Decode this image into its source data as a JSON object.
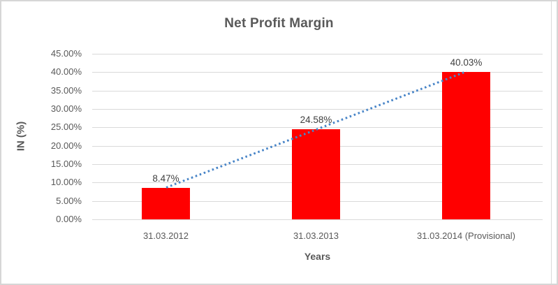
{
  "chart_data": {
    "type": "bar",
    "title": "Net Profit Margin",
    "categories": [
      "31.03.2012",
      "31.03.2013",
      "31.03.2014 (Provisional)"
    ],
    "values": [
      8.47,
      24.58,
      40.03
    ],
    "data_labels": [
      "8.47%",
      "24.58%",
      "40.03%"
    ],
    "xlabel": "Years",
    "ylabel": "IN (%)",
    "ylim": [
      0,
      45
    ],
    "yticks": [
      "45.00%",
      "40.00%",
      "35.00%",
      "30.00%",
      "25.00%",
      "20.00%",
      "15.00%",
      "10.00%",
      "5.00%",
      "0.00%"
    ],
    "grid": true,
    "legend": "none",
    "trendline": {
      "type": "linear",
      "style": "dotted"
    },
    "colors": {
      "bar": "#FF0000",
      "trendline": "#4A86C8",
      "gridline": "#D9D9D9",
      "axis_line": "#D9D9D9",
      "title_text": "#595959",
      "axis_title_text": "#595959",
      "tick_text": "#595959",
      "data_label_text": "#404040",
      "frame_border": "#D6D6D6"
    }
  }
}
